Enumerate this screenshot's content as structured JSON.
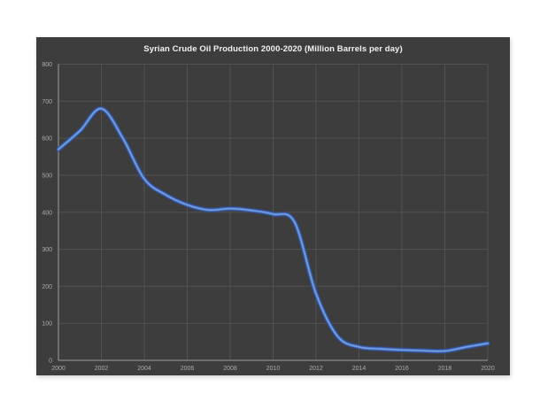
{
  "chart": {
    "colors": {
      "page_bg": "#ffffff",
      "chart_bg": "#3d3d3d",
      "grid": "#535353",
      "axis": "#a0a0a0",
      "tick_text": "#ababab",
      "title_text": "#f2f2f2",
      "line": "#4472c4",
      "line_glow": "#2f4d96",
      "line_highlight": "#7ba0e0"
    }
  },
  "chart_data": {
    "type": "line",
    "title": "Syrian Crude Oil Production 2000-2020 (Million Barrels per day)",
    "xlabel": "",
    "ylabel": "",
    "xlim": [
      2000,
      2020
    ],
    "ylim": [
      0,
      800
    ],
    "x_ticks": [
      2000,
      2002,
      2004,
      2006,
      2008,
      2010,
      2012,
      2014,
      2016,
      2018,
      2020
    ],
    "y_ticks": [
      0,
      100,
      200,
      300,
      400,
      500,
      600,
      700,
      800
    ],
    "grid": true,
    "legend": "none",
    "smooth": true,
    "x": [
      2000,
      2001,
      2002,
      2003,
      2004,
      2005,
      2006,
      2007,
      2008,
      2009,
      2010,
      2011,
      2012,
      2013,
      2014,
      2015,
      2016,
      2017,
      2018,
      2019,
      2020
    ],
    "series": [
      {
        "name": "Syrian crude oil production",
        "values": [
          570,
          620,
          680,
          600,
          490,
          447,
          420,
          406,
          410,
          405,
          395,
          373,
          180,
          65,
          36,
          31,
          28,
          26,
          25,
          36,
          46
        ]
      }
    ]
  }
}
